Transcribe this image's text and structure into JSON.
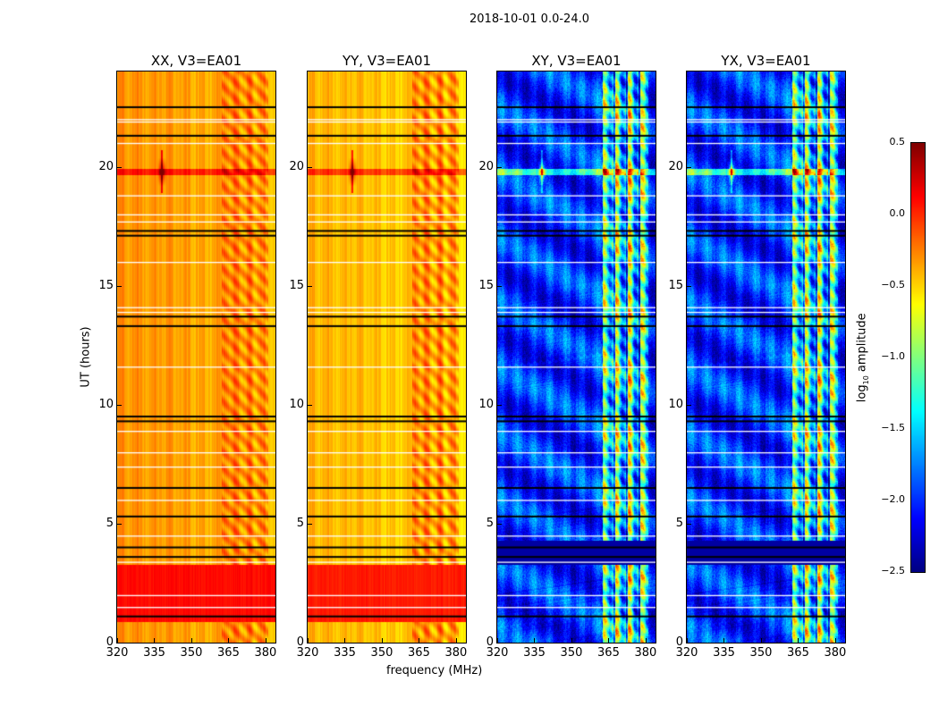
{
  "chart_data": {
    "type": "heatmap",
    "suptitle": "2018-10-01 0.0-24.0",
    "xlabel": "frequency (MHz)",
    "ylabel": "UT (hours)",
    "xlim": [
      320,
      384
    ],
    "ylim": [
      0,
      24
    ],
    "xticks": [
      "320",
      "335",
      "350",
      "365",
      "380"
    ],
    "yticks": [
      "0",
      "5",
      "10",
      "15",
      "20"
    ],
    "panels": [
      {
        "title": "XX, V3=EA01",
        "base": -0.3,
        "rfi_boost": 0.2,
        "low_band_hours": [
          0.9,
          3.3
        ],
        "low_band_level": 0.1
      },
      {
        "title": "YY, V3=EA01",
        "base": -0.4,
        "rfi_boost": 0.3,
        "low_band_hours": [
          0.9,
          3.3
        ],
        "low_band_level": 0.05
      },
      {
        "title": "XY, V3=EA01",
        "base": -2.0,
        "rfi_boost": 1.3,
        "low_band_hours": [
          3.3,
          4.3
        ],
        "low_band_level": -2.4
      },
      {
        "title": "YX, V3=EA01",
        "base": -2.0,
        "rfi_boost": 1.3,
        "low_band_hours": [
          3.3,
          4.3
        ],
        "low_band_level": -2.4
      }
    ],
    "rfi_band_mhz": [
      362,
      381
    ],
    "rfi_source": {
      "freq_mhz": 338,
      "hour": 19.8
    },
    "flagged_hours_black": [
      22.5,
      21.3,
      17.3,
      17.1,
      13.7,
      13.3,
      9.5,
      9.3,
      6.5,
      5.3,
      4.0,
      3.6,
      1.1
    ],
    "flagged_hours_white": [
      22.0,
      21.9,
      21.0,
      18.8,
      18.0,
      17.7,
      16.0,
      14.1,
      13.9,
      11.6,
      8.9,
      8.0,
      7.4,
      6.0,
      4.5,
      3.4,
      2.0,
      1.5
    ],
    "colorbar": {
      "label": "log10 amplitude",
      "label_main": "log",
      "label_sub": "10",
      "label_rest": " amplitude",
      "range": [
        -2.5,
        0.5
      ],
      "ticks": [
        "0.5",
        "0.0",
        "−0.5",
        "−1.0",
        "−1.5",
        "−2.0",
        "−2.5"
      ],
      "colormap": "jet"
    }
  }
}
